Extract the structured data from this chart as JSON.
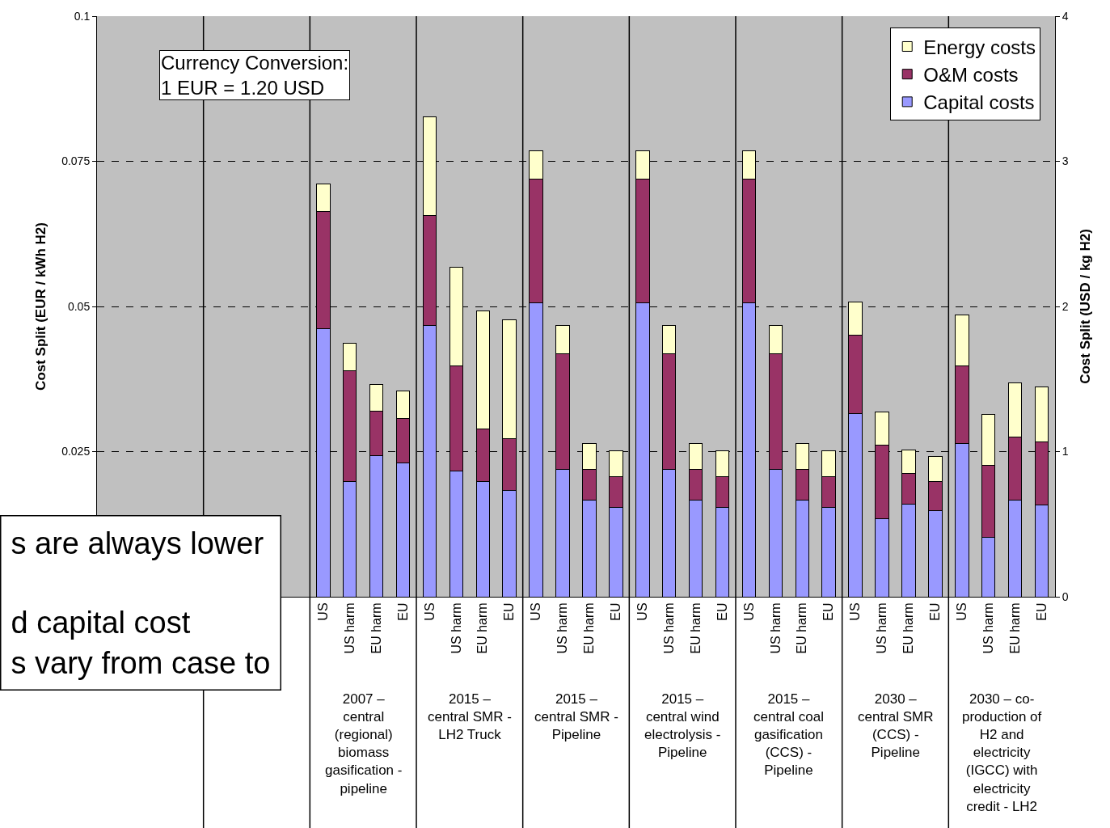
{
  "chart_data": {
    "type": "bar",
    "stacked": true,
    "ylabel": "Cost Split (EUR / kWh H2)",
    "y2label": "Cost Split (USD / kg H2)",
    "categories": [
      null,
      null,
      null,
      null,
      null,
      null,
      null,
      null,
      "US",
      "US harm",
      "EU harm",
      "EU",
      "US",
      "US harm",
      "EU harm",
      "EU",
      "US",
      "US harm",
      "EU harm",
      "EU",
      "US",
      "US harm",
      "EU harm",
      "EU",
      "US",
      "US harm",
      "EU harm",
      "EU",
      "US",
      "US harm",
      "EU harm",
      "EU",
      "US",
      "US harm",
      "EU harm",
      "EU"
    ],
    "series": [
      {
        "name": "Capital costs",
        "color": "#9999ff",
        "values": [
          null,
          null,
          null,
          null,
          null,
          null,
          null,
          null,
          0.0462,
          0.0199,
          0.0243,
          0.0231,
          0.0467,
          0.0217,
          0.0199,
          0.0183,
          0.0506,
          0.022,
          0.0166,
          0.0154,
          0.0506,
          0.022,
          0.0166,
          0.0154,
          0.0506,
          0.022,
          0.0166,
          0.0154,
          0.0315,
          0.0134,
          0.016,
          0.0148,
          0.0264,
          0.0102,
          0.0167,
          0.0158
        ]
      },
      {
        "name": "O&M costs",
        "color": "#993366",
        "values": [
          null,
          null,
          null,
          null,
          null,
          null,
          null,
          null,
          0.0202,
          0.019,
          0.0077,
          0.0076,
          0.019,
          0.018,
          0.009,
          0.0089,
          0.0213,
          0.0198,
          0.0054,
          0.0053,
          0.0213,
          0.0198,
          0.0054,
          0.0053,
          0.0213,
          0.0198,
          0.0054,
          0.0053,
          0.0136,
          0.0127,
          0.0053,
          0.0051,
          0.0134,
          0.0125,
          0.0108,
          0.0109
        ]
      },
      {
        "name": "Energy costs",
        "color": "#ffffcc",
        "values": [
          null,
          null,
          null,
          null,
          null,
          null,
          null,
          null,
          0.0047,
          0.0047,
          0.0045,
          0.0047,
          0.017,
          0.017,
          0.0203,
          0.0205,
          0.0049,
          0.0049,
          0.0044,
          0.0045,
          0.0049,
          0.0049,
          0.0044,
          0.0045,
          0.0049,
          0.0049,
          0.0044,
          0.0045,
          0.0057,
          0.0057,
          0.004,
          0.0043,
          0.0087,
          0.0087,
          0.0094,
          0.0094
        ]
      }
    ],
    "ylim": [
      0,
      0.1
    ],
    "yticks": [
      {
        "value": 0,
        "label": null
      },
      0.025,
      0.05,
      0.075,
      0.1
    ],
    "y2lim": [
      0,
      4
    ],
    "y2ticks": [
      0,
      1,
      2,
      3,
      4
    ],
    "grid": "y",
    "legend": "top right",
    "annotations": [
      "Currency Conversion:\n1 EUR = 1.20 USD",
      "2007 –\ncentral\n(regional)\nbiomass\ngasification -\npipeline",
      "2015 –\ncentral SMR -\nLH2 Truck",
      "2015 –\ncentral SMR -\nPipeline",
      "2015 –\ncentral wind\nelectrolysis -\nPipeline",
      "2015 –\ncentral coal\ngasification\n(CCS) -\nPipeline",
      "2030 –\ncentral SMR\n(CCS) -\nPipeline",
      "2030 – co-\nproduction of\nH2 and\nelectricity\n(IGCC) with\nelectricity\ncredit - LH2",
      "s are always lower\n\nd capital cost\ns vary from case to"
    ]
  }
}
